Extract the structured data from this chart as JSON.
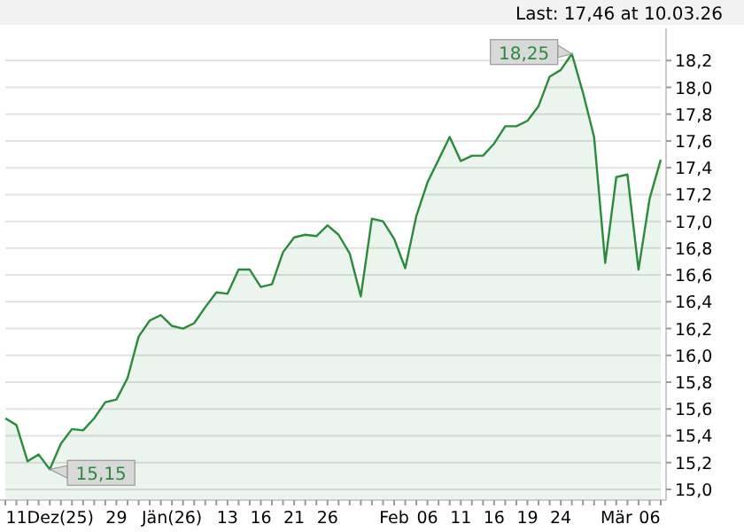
{
  "chart_data": {
    "type": "area",
    "annotations": [
      "Last: 17,46 at 10.03.26",
      {
        "text": "18,25",
        "y": 18.25
      },
      {
        "text": "15,15",
        "x": "11Dez(25)",
        "y": 15.15
      }
    ],
    "categories": [
      null,
      null,
      null,
      null,
      "11Dez(25)",
      null,
      null,
      null,
      null,
      null,
      "29",
      null,
      null,
      null,
      null,
      "Jän(26)",
      null,
      null,
      null,
      null,
      "13",
      null,
      null,
      "16",
      null,
      null,
      "21",
      null,
      null,
      "26",
      null,
      null,
      null,
      null,
      null,
      "Feb",
      null,
      null,
      "06",
      null,
      null,
      "11",
      null,
      null,
      "16",
      null,
      null,
      "19",
      null,
      null,
      "24",
      null,
      null,
      null,
      null,
      "Mär",
      null,
      null,
      "06",
      null
    ],
    "series": [
      {
        "color": "#2a8c3a",
        "values": [
          15.53,
          15.48,
          15.21,
          15.26,
          15.15,
          15.34,
          15.45,
          15.44,
          15.53,
          15.65,
          15.67,
          15.83,
          16.14,
          16.26,
          16.3,
          16.22,
          16.2,
          16.24,
          16.36,
          16.47,
          16.46,
          16.64,
          16.64,
          16.51,
          16.53,
          16.77,
          16.88,
          16.9,
          16.89,
          16.97,
          16.9,
          16.76,
          16.44,
          17.02,
          17.0,
          16.87,
          16.65,
          17.04,
          17.29,
          17.46,
          17.63,
          17.45,
          17.49,
          17.49,
          17.58,
          17.71,
          17.71,
          17.75,
          17.86,
          18.08,
          18.13,
          18.25,
          17.96,
          17.63,
          16.69,
          17.33,
          17.35,
          16.64,
          17.17,
          17.46
        ]
      }
    ],
    "ylim": [
      14.92,
      18.44
    ],
    "yticks": [
      {
        "value": 15,
        "label": "15,0"
      },
      {
        "value": 15.2,
        "label": "15,2"
      },
      {
        "value": 15.4,
        "label": "15,4"
      },
      {
        "value": 15.6,
        "label": "15,6"
      },
      {
        "value": 15.8,
        "label": "15,8"
      },
      {
        "value": 16,
        "label": "16,0"
      },
      {
        "value": 16.2,
        "label": "16,2"
      },
      {
        "value": 16.4,
        "label": "16,4"
      },
      {
        "value": 16.6,
        "label": "16,6"
      },
      {
        "value": 16.8,
        "label": "16,8"
      },
      {
        "value": 17,
        "label": "17,0"
      },
      {
        "value": 17.2,
        "label": "17,2"
      },
      {
        "value": 17.4,
        "label": "17,4"
      },
      {
        "value": 17.6,
        "label": "17,6"
      },
      {
        "value": 17.8,
        "label": "17,8"
      },
      {
        "value": 18,
        "label": "18,0"
      },
      {
        "value": 18.2,
        "label": "18,2"
      }
    ],
    "grid": "y"
  }
}
